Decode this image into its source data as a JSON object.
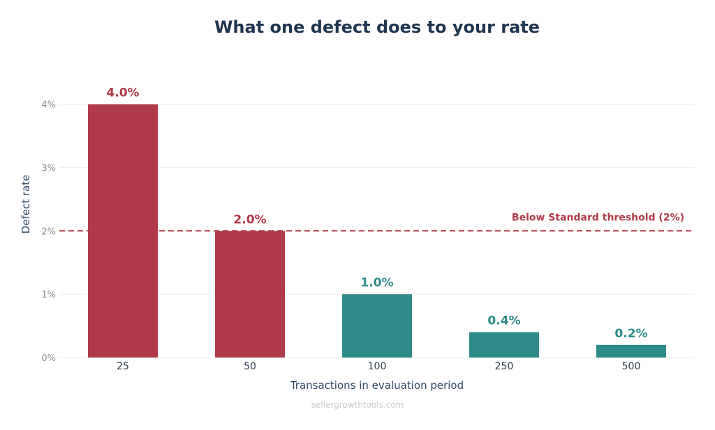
{
  "colors": {
    "above_threshold": "#b03a48",
    "below_threshold": "#2e8b89",
    "title": "#1f3550",
    "grid": "#eeeeee"
  },
  "chart_data": {
    "type": "bar",
    "title": "What one defect does to your rate",
    "xlabel": "Transactions in evaluation period",
    "ylabel": "Defect rate",
    "categories": [
      "25",
      "50",
      "100",
      "250",
      "500"
    ],
    "values": [
      4.0,
      2.0,
      1.0,
      0.4,
      0.2
    ],
    "value_labels": [
      "4.0%",
      "2.0%",
      "1.0%",
      "0.4%",
      "0.2%"
    ],
    "ylim": [
      0,
      4.7
    ],
    "yticks": [
      0,
      1,
      2,
      3,
      4
    ],
    "ytick_labels": [
      "0%",
      "1%",
      "2%",
      "3%",
      "4%"
    ],
    "grid": true,
    "threshold": {
      "value": 2,
      "label": "Below Standard threshold (2%)",
      "style": "dashed"
    }
  },
  "footer": {
    "watermark": "sellergrowthtools.com"
  }
}
